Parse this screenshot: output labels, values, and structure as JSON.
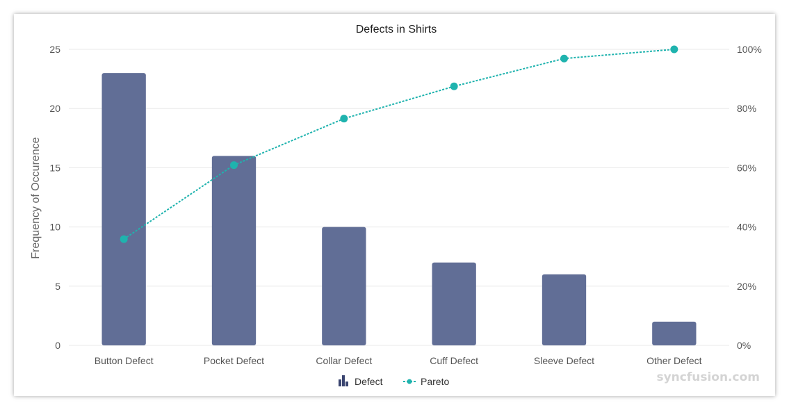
{
  "chart_data": {
    "type": "bar",
    "title": "Defects in Shirts",
    "ylabel": "Frequency of Occurence",
    "ylim": [
      0,
      25
    ],
    "y_ticks": [
      "0",
      "5",
      "10",
      "15",
      "20",
      "25"
    ],
    "y2lim": [
      0,
      100
    ],
    "y2_ticks": [
      "0%",
      "20%",
      "40%",
      "60%",
      "80%",
      "100%"
    ],
    "categories": [
      "Button Defect",
      "Pocket Defect",
      "Collar Defect",
      "Cuff Defect",
      "Sleeve Defect",
      "Other Defect"
    ],
    "series": [
      {
        "name": "Defect",
        "type": "bar",
        "axis": "primary",
        "values": [
          23,
          16,
          10,
          7,
          6,
          2
        ]
      },
      {
        "name": "Pareto",
        "type": "line",
        "axis": "secondary",
        "values": [
          35.9,
          60.9,
          76.6,
          87.5,
          96.9,
          100
        ]
      }
    ],
    "grid": true,
    "legend": "bottom",
    "colors": {
      "bar": "#616e96",
      "line": "#1fb3ae",
      "grid": "#e8e8e8"
    }
  },
  "watermark": "syncfusion.com"
}
